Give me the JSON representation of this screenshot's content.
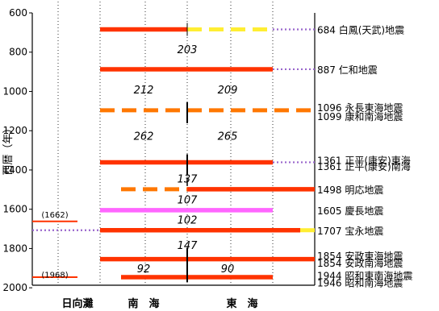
{
  "chart_data": {
    "type": "timeline",
    "ylabel": "西暦（年）",
    "ylim": [
      600,
      2000
    ],
    "yticks": [
      600,
      800,
      1000,
      1200,
      1400,
      1600,
      1800,
      2000
    ],
    "regions": [
      {
        "label": "日向灘"
      },
      {
        "label": "南　海"
      },
      {
        "label": "東　海"
      }
    ],
    "segments": [
      {
        "year": 684,
        "from": "nankai_w",
        "to": "nankai_e",
        "style": "solid",
        "color": "#ff3300"
      },
      {
        "year": 684,
        "from": "tokai_w",
        "to": "tokai_e",
        "style": "dash",
        "color": "#ffee33"
      },
      {
        "year": 684,
        "from": "tokai_e",
        "to": "right",
        "style": "dot",
        "color": "#9966cc"
      },
      {
        "year": 887,
        "from": "nankai_w",
        "to": "tokai_e",
        "style": "solid",
        "color": "#ff3300"
      },
      {
        "year": 887,
        "from": "tokai_e",
        "to": "right",
        "style": "dot",
        "color": "#9966cc"
      },
      {
        "year": 1096,
        "from": "nankai_w",
        "to": "right",
        "style": "dash",
        "color": "#ff7700"
      },
      {
        "year": 1361,
        "from": "nankai_w",
        "to": "tokai_e",
        "style": "solid",
        "color": "#ff3300"
      },
      {
        "year": 1361,
        "from": "tokai_e",
        "to": "right",
        "style": "dot",
        "color": "#9966cc"
      },
      {
        "year": 1498,
        "from": "nankai_w2",
        "to": "nankai_e",
        "style": "dash",
        "color": "#ff7700"
      },
      {
        "year": 1498,
        "from": "tokai_w",
        "to": "right",
        "style": "solid",
        "color": "#ff3300"
      },
      {
        "year": 1605,
        "from": "nankai_w",
        "to": "tokai_e",
        "style": "solid",
        "color": "#ff66ff"
      },
      {
        "year": 1662,
        "from": "left",
        "to": "hyuga_e",
        "style": "thin",
        "color": "#ff3300"
      },
      {
        "year": 1707,
        "from": "left",
        "to": "nankai_w",
        "style": "dot",
        "color": "#9966cc"
      },
      {
        "year": 1707,
        "from": "nankai_w",
        "to": "tokai_e2",
        "style": "solid",
        "color": "#ff3300"
      },
      {
        "year": 1707,
        "from": "tokai_e2",
        "to": "right",
        "style": "dash",
        "color": "#ffee33"
      },
      {
        "year": 1854,
        "from": "nankai_w",
        "to": "right",
        "style": "solid",
        "color": "#ff3300"
      },
      {
        "year": 1946,
        "from": "left",
        "to": "hyuga_e",
        "style": "thin",
        "color": "#ff3300"
      },
      {
        "year": 1946,
        "from": "nankai_w2",
        "to": "tokai_e",
        "style": "solid",
        "color": "#ff3300"
      }
    ],
    "ticks_vertical": [
      1096,
      1361,
      1854
    ],
    "side_labels": [
      {
        "year": 1662,
        "text": "(1662)"
      },
      {
        "year": 1968,
        "text": "(1968)"
      }
    ],
    "intervals": [
      {
        "year": 785,
        "pos": "center",
        "text": "203"
      },
      {
        "year": 990,
        "pos": "nankai",
        "text": "212"
      },
      {
        "year": 990,
        "pos": "tokai",
        "text": "209"
      },
      {
        "year": 1225,
        "pos": "nankai",
        "text": "262"
      },
      {
        "year": 1225,
        "pos": "tokai",
        "text": "265"
      },
      {
        "year": 1443,
        "pos": "center",
        "text": "137"
      },
      {
        "year": 1550,
        "pos": "center",
        "text": "107"
      },
      {
        "year": 1653,
        "pos": "center",
        "text": "102"
      },
      {
        "year": 1782,
        "pos": "center",
        "text": "147"
      },
      {
        "year": 1900,
        "pos": "nankai",
        "text": "92"
      },
      {
        "year": 1900,
        "pos": "tokai",
        "text": "90"
      }
    ],
    "earthquakes": [
      {
        "year": 684,
        "text": "684 白鳳(天武)地震"
      },
      {
        "year": 887,
        "text": "887 仁和地震"
      },
      {
        "year": 1080,
        "text": "1096 永長東海地震"
      },
      {
        "year": 1125,
        "text": "1099 康和南海地震"
      },
      {
        "year": 1349,
        "text": "1361 正平(康安)東海"
      },
      {
        "year": 1380,
        "text": "1361 正平(康安)南海"
      },
      {
        "year": 1498,
        "text": "1498 明応地震"
      },
      {
        "year": 1605,
        "text": "1605 慶長地震"
      },
      {
        "year": 1707,
        "text": "1707 宝永地震"
      },
      {
        "year": 1835,
        "text": "1854 安政東海地震"
      },
      {
        "year": 1873,
        "text": "1854 安政南海地震"
      },
      {
        "year": 1935,
        "text": "1944 昭和東南海地震"
      },
      {
        "year": 1972,
        "text": "1946 昭和南海地震"
      }
    ]
  }
}
